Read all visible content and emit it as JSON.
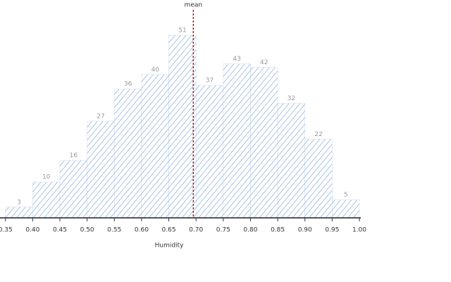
{
  "chart_data": {
    "type": "histogram",
    "x_label": "Humidity",
    "bins": [
      0.35,
      0.4,
      0.45,
      0.5,
      0.55,
      0.6,
      0.65,
      0.7,
      0.75,
      0.8,
      0.85,
      0.9,
      0.95,
      1.0
    ],
    "values": [
      3,
      10,
      16,
      27,
      36,
      40,
      51,
      37,
      43,
      42,
      32,
      22,
      5
    ],
    "color": "#a8c3e6",
    "xlim": [
      0.34,
      1.0
    ],
    "ylim": [
      0,
      51
    ],
    "xticks": [
      0.35,
      {
        "value": 0.4,
        "label": "0.40"
      },
      0.45,
      {
        "value": 0.5,
        "label": "0.50"
      },
      0.55,
      {
        "value": 0.6,
        "label": "0.60"
      },
      0.65,
      {
        "value": 0.7,
        "label": "0.70"
      },
      0.75,
      {
        "value": 0.8,
        "label": "0.80"
      },
      0.85,
      {
        "value": 0.9,
        "label": "0.90"
      },
      0.95,
      {
        "value": 1.0,
        "label": "1.00"
      }
    ],
    "mean_line": {
      "label": "mean",
      "value": 0.695,
      "color": "#b22222"
    }
  }
}
